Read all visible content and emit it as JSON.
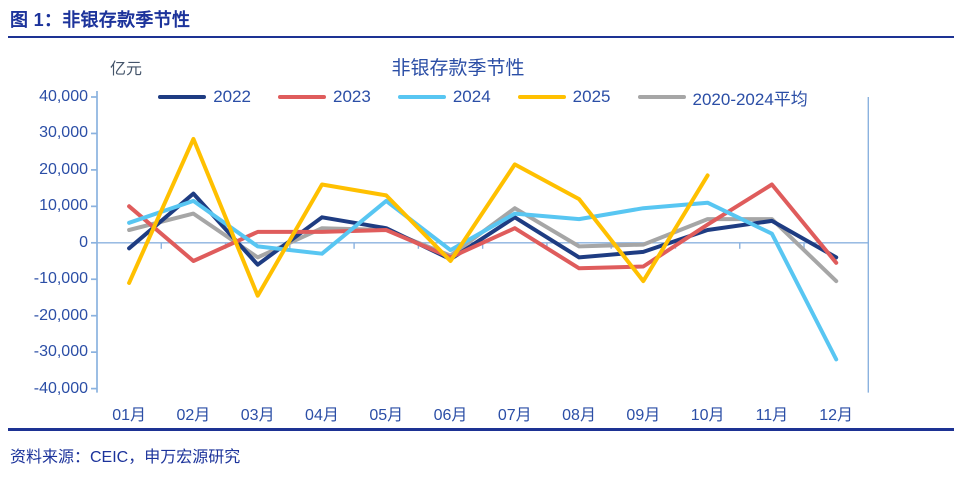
{
  "figure": {
    "header_title": "图 1：非银存款季节性",
    "source": "资料来源：CEIC，申万宏源研究"
  },
  "colors": {
    "header_text": "#1C339B",
    "rule": "#1D3293",
    "axis_text": "#2B4EA6",
    "axis_line": "#8BB2DF",
    "unit_text": "#44546A",
    "source_text": "#1C339B"
  },
  "chart_data": {
    "type": "line",
    "title": "非银存款季节性",
    "unit": "亿元",
    "ylabel": "亿元",
    "categories": [
      "01月",
      "02月",
      "03月",
      "04月",
      "05月",
      "06月",
      "07月",
      "08月",
      "09月",
      "10月",
      "11月",
      "12月"
    ],
    "series": [
      {
        "name": "2022",
        "color": "#1E3C82",
        "values": [
          -1500,
          13500,
          -6000,
          7000,
          4000,
          -4500,
          7000,
          -4000,
          -2500,
          3500,
          6000,
          -4000
        ]
      },
      {
        "name": "2023",
        "color": "#DF5C5C",
        "values": [
          10000,
          -5000,
          3000,
          3000,
          3500,
          -4000,
          4000,
          -7000,
          -6500,
          5000,
          16000,
          -5500
        ]
      },
      {
        "name": "2024",
        "color": "#58C6F2",
        "values": [
          5500,
          11500,
          -1000,
          -3000,
          11500,
          -2000,
          8000,
          6500,
          9500,
          11000,
          2500,
          -32000
        ]
      },
      {
        "name": "2025",
        "color": "#FFC000",
        "values": [
          -11000,
          28500,
          -14500,
          16000,
          13000,
          -5000,
          21500,
          12000,
          -10500,
          18500,
          null,
          null
        ]
      },
      {
        "name": "2020-2024平均",
        "color": "#A6A6A6",
        "values": [
          3500,
          8000,
          -4000,
          4000,
          3500,
          -3500,
          9500,
          -1000,
          -500,
          6500,
          6500,
          -10500
        ]
      }
    ],
    "ylim": [
      -40000,
      40000
    ],
    "ytick_step": 10000,
    "ytick_labels": [
      "40,000",
      "30,000",
      "20,000",
      "10,000",
      "0",
      "-10,000",
      "-20,000",
      "-30,000",
      "-40,000"
    ],
    "legend_position": "top",
    "grid": false,
    "zero_line": true,
    "draw_order": [
      4,
      0,
      1,
      2,
      3
    ]
  }
}
